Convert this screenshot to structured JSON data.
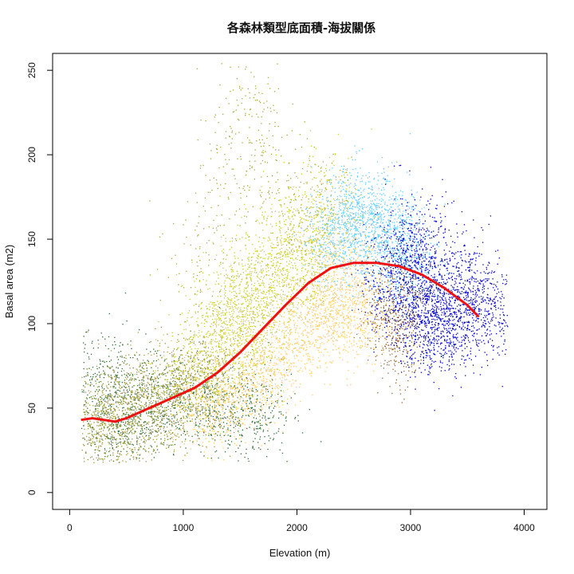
{
  "chart_data": {
    "type": "scatter",
    "title": "各森林類型底面積-海拔關係",
    "xlabel": "Elevation (m)",
    "ylabel": "Basal area (m2)",
    "xlim": [
      -150,
      4200
    ],
    "ylim": [
      -10,
      260
    ],
    "xticks": [
      0,
      1000,
      2000,
      3000,
      4000
    ],
    "yticks": [
      0,
      50,
      100,
      150,
      200,
      250
    ],
    "grid": false,
    "legend": "none",
    "clusters": [
      {
        "color": "#2e6b33",
        "points": [
          [
            300,
            40
          ],
          [
            500,
            45
          ],
          [
            700,
            50
          ],
          [
            900,
            55
          ],
          [
            1100,
            55
          ],
          [
            1300,
            50
          ],
          [
            1500,
            50
          ],
          [
            1650,
            45
          ],
          [
            150,
            70
          ],
          [
            400,
            65
          ]
        ],
        "spread": [
          180,
          14
        ],
        "n": 1400
      },
      {
        "color": "#9c9a3c",
        "points": [
          [
            200,
            45
          ],
          [
            400,
            50
          ],
          [
            600,
            55
          ],
          [
            800,
            60
          ],
          [
            1000,
            65
          ],
          [
            1200,
            65
          ],
          [
            300,
            35
          ],
          [
            700,
            40
          ]
        ],
        "spread": [
          170,
          14
        ],
        "n": 1800
      },
      {
        "color": "#a8a936",
        "points": [
          [
            1100,
            130
          ],
          [
            1300,
            160
          ],
          [
            1450,
            190
          ],
          [
            1550,
            215
          ],
          [
            1600,
            230
          ],
          [
            1700,
            200
          ],
          [
            1900,
            180
          ],
          [
            2100,
            170
          ],
          [
            2300,
            170
          ]
        ],
        "spread": [
          160,
          20
        ],
        "n": 500
      },
      {
        "color": "#cccc33",
        "points": [
          [
            1100,
            70
          ],
          [
            1300,
            85
          ],
          [
            1500,
            100
          ],
          [
            1700,
            115
          ],
          [
            1900,
            130
          ],
          [
            2100,
            150
          ],
          [
            2250,
            165
          ],
          [
            1600,
            120
          ],
          [
            1400,
            95
          ],
          [
            2000,
            140
          ]
        ],
        "spread": [
          170,
          18
        ],
        "n": 2600
      },
      {
        "color": "#ffcc66",
        "points": [
          [
            1200,
            48
          ],
          [
            1400,
            55
          ],
          [
            1600,
            65
          ],
          [
            1800,
            75
          ],
          [
            2000,
            90
          ],
          [
            2200,
            100
          ],
          [
            2400,
            105
          ],
          [
            2600,
            100
          ],
          [
            2300,
            120
          ],
          [
            2500,
            130
          ]
        ],
        "spread": [
          150,
          12
        ],
        "n": 2000
      },
      {
        "color": "#66ccff",
        "points": [
          [
            2300,
            150
          ],
          [
            2450,
            160
          ],
          [
            2600,
            155
          ],
          [
            2750,
            150
          ],
          [
            2900,
            140
          ],
          [
            3000,
            135
          ],
          [
            2500,
            170
          ],
          [
            2800,
            165
          ]
        ],
        "spread": [
          140,
          14
        ],
        "n": 1600
      },
      {
        "color": "#996633",
        "points": [
          [
            2750,
            100
          ],
          [
            2850,
            90
          ],
          [
            2950,
            80
          ],
          [
            3000,
            110
          ],
          [
            2800,
            115
          ]
        ],
        "spread": [
          100,
          12
        ],
        "n": 450
      },
      {
        "color": "#0000cc",
        "points": [
          [
            2800,
            125
          ],
          [
            3000,
            120
          ],
          [
            3200,
            115
          ],
          [
            3400,
            110
          ],
          [
            2950,
            145
          ],
          [
            3150,
            140
          ],
          [
            3300,
            95
          ],
          [
            3100,
            100
          ],
          [
            3500,
            120
          ],
          [
            3700,
            110
          ]
        ],
        "spread": [
          130,
          16
        ],
        "n": 2300
      }
    ],
    "trend_line": {
      "color": "#ee1111",
      "x": [
        100,
        200,
        300,
        400,
        500,
        700,
        900,
        1100,
        1300,
        1500,
        1700,
        1900,
        2100,
        2300,
        2500,
        2700,
        2900,
        3100,
        3300,
        3500,
        3600
      ],
      "y": [
        43,
        44,
        43,
        42,
        44,
        50,
        56,
        62,
        71,
        83,
        97,
        111,
        124,
        133,
        136,
        136,
        134,
        129,
        121,
        111,
        104
      ]
    }
  }
}
